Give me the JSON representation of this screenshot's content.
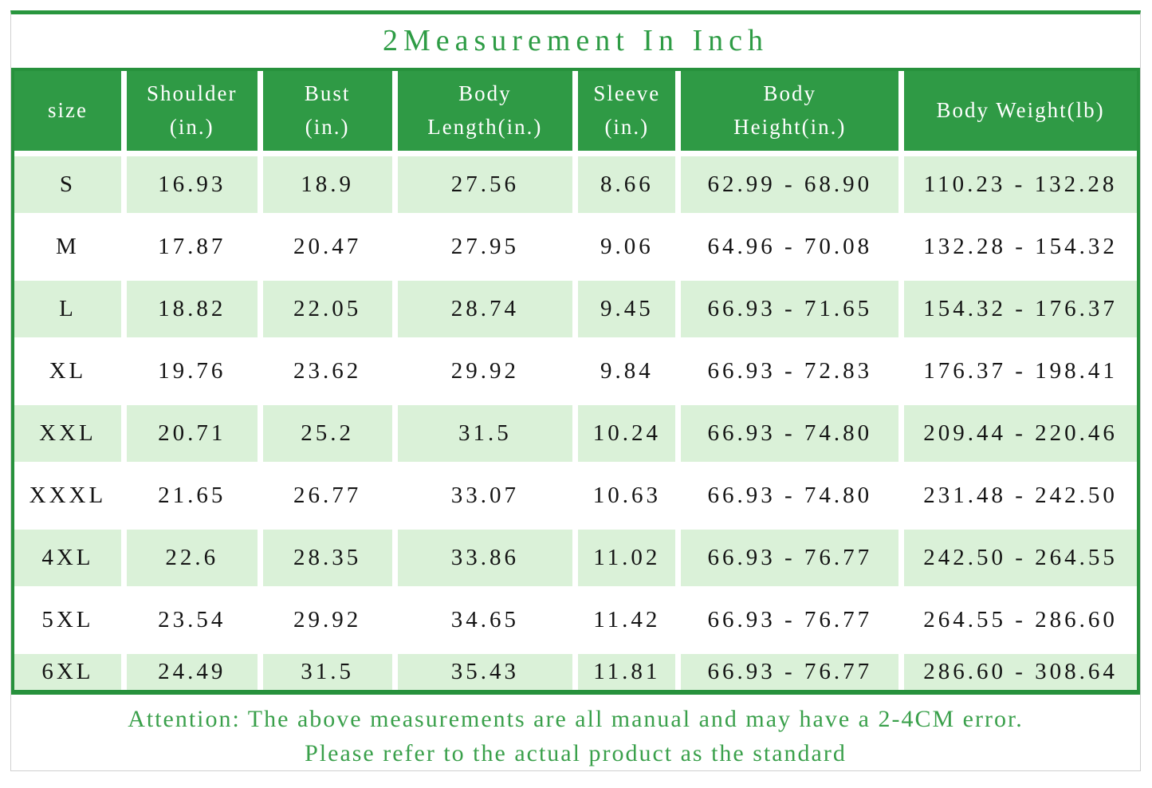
{
  "page": {
    "title": "2Measurement In Inch",
    "colors": {
      "header_green": "#2f9a45",
      "row_light_green": "#daf1d8",
      "table_border_green": "#27913c",
      "top_bar_green": "#28963e",
      "note_text_green": "#3aa04b",
      "frame_border_gray": "#cfcfcf"
    }
  },
  "note": {
    "line1": "Attention: The above measurements are all manual and may have a 2-4CM error.",
    "line2": "Please refer to the actual product as the standard"
  },
  "chart_data": {
    "type": "table",
    "title": "2Measurement In Inch",
    "columns": [
      "size",
      "Shoulder (in.)",
      "Bust (in.)",
      "Body Length(in.)",
      "Sleeve (in.)",
      "Body Height(in.)",
      "Body Weight(lb)"
    ],
    "rows": [
      [
        "S",
        "16.93",
        "18.9",
        "27.56",
        "8.66",
        "62.99 - 68.90",
        "110.23 - 132.28"
      ],
      [
        "M",
        "17.87",
        "20.47",
        "27.95",
        "9.06",
        "64.96 - 70.08",
        "132.28 - 154.32"
      ],
      [
        "L",
        "18.82",
        "22.05",
        "28.74",
        "9.45",
        "66.93 - 71.65",
        "154.32 - 176.37"
      ],
      [
        "XL",
        "19.76",
        "23.62",
        "29.92",
        "9.84",
        "66.93 - 72.83",
        "176.37 - 198.41"
      ],
      [
        "XXL",
        "20.71",
        "25.2",
        "31.5",
        "10.24",
        "66.93 - 74.80",
        "209.44 - 220.46"
      ],
      [
        "XXXL",
        "21.65",
        "26.77",
        "33.07",
        "10.63",
        "66.93 - 74.80",
        "231.48 - 242.50"
      ],
      [
        "4XL",
        "22.6",
        "28.35",
        "33.86",
        "11.02",
        "66.93 - 76.77",
        "242.50 - 264.55"
      ],
      [
        "5XL",
        "23.54",
        "29.92",
        "34.65",
        "11.42",
        "66.93 - 76.77",
        "264.55 - 286.60"
      ],
      [
        "6XL",
        "24.49",
        "31.5",
        "35.43",
        "11.81",
        "66.93 - 76.77",
        "286.60 - 308.64"
      ]
    ]
  },
  "table": {
    "header_lines": [
      [
        "size"
      ],
      [
        "Shoulder",
        "(in.)"
      ],
      [
        "Bust",
        "(in.)"
      ],
      [
        "Body",
        "Length(in.)"
      ],
      [
        "Sleeve",
        "(in.)"
      ],
      [
        "Body",
        "Height(in.)"
      ],
      [
        "Body Weight(lb)"
      ]
    ]
  }
}
